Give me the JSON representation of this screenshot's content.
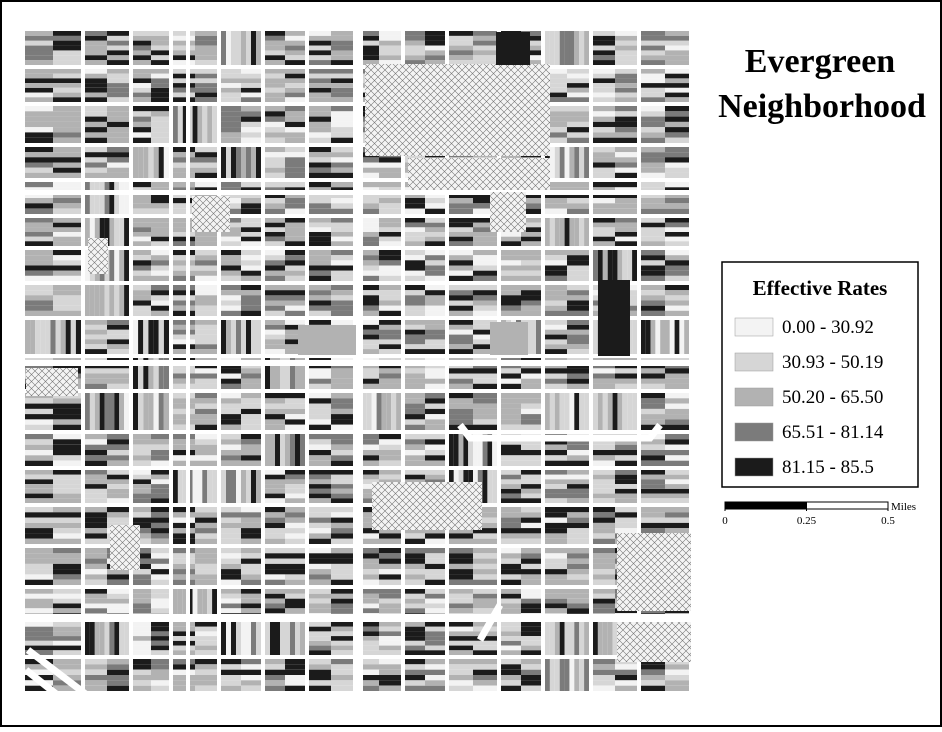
{
  "title": [
    "Evergreen",
    "Neighborhood"
  ],
  "legend": {
    "title": "Effective Rates",
    "items": [
      {
        "label": "0.00 - 30.92",
        "color": "#f3f3f3"
      },
      {
        "label": "30.93 - 50.19",
        "color": "#d6d6d6"
      },
      {
        "label": "50.20 - 65.50",
        "color": "#b2b2b2"
      },
      {
        "label": "65.51 - 81.14",
        "color": "#7b7b7b"
      },
      {
        "label": "81.15 - 85.5",
        "color": "#1b1b1b"
      }
    ]
  },
  "scale_bar": {
    "unit": "Miles",
    "ticks": [
      0,
      0.25,
      0.5
    ]
  }
}
